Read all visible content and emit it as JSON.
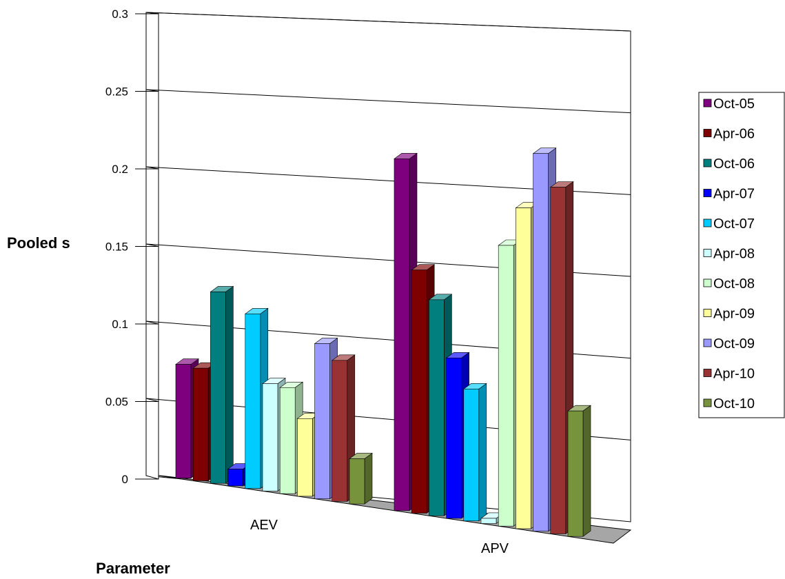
{
  "chart_data": {
    "type": "bar",
    "xlabel": "Parameter",
    "ylabel": "Pooled s",
    "categories": [
      "AEV",
      "APV"
    ],
    "ylim": [
      0,
      0.3
    ],
    "y_ticks": [
      "0",
      "0.05",
      "0.1",
      "0.15",
      "0.2",
      "0.25",
      "0.3"
    ],
    "grid": true,
    "legend_position": "right",
    "series": [
      {
        "name": "Oct-05",
        "color": "#7F007F",
        "values": [
          0.088,
          0.272
        ]
      },
      {
        "name": "Apr-06",
        "color": "#7F0000",
        "values": [
          0.087,
          0.188
        ]
      },
      {
        "name": "Oct-06",
        "color": "#007F7F",
        "values": [
          0.148,
          0.167
        ]
      },
      {
        "name": "Apr-07",
        "color": "#0000FF",
        "values": [
          0.013,
          0.124
        ]
      },
      {
        "name": "Oct-07",
        "color": "#00CCFF",
        "values": [
          0.135,
          0.102
        ]
      },
      {
        "name": "Apr-08",
        "color": "#CCFFFF",
        "values": [
          0.083,
          0.004
        ]
      },
      {
        "name": "Oct-08",
        "color": "#CCFFCC",
        "values": [
          0.082,
          0.217
        ]
      },
      {
        "name": "Apr-09",
        "color": "#FFFF99",
        "values": [
          0.06,
          0.248
        ]
      },
      {
        "name": "Oct-09",
        "color": "#9999FF",
        "values": [
          0.12,
          0.292
        ]
      },
      {
        "name": "Apr-10",
        "color": "#993333",
        "values": [
          0.109,
          0.268
        ]
      },
      {
        "name": "Oct-10",
        "color": "#77933C",
        "values": [
          0.035,
          0.097
        ]
      }
    ]
  }
}
